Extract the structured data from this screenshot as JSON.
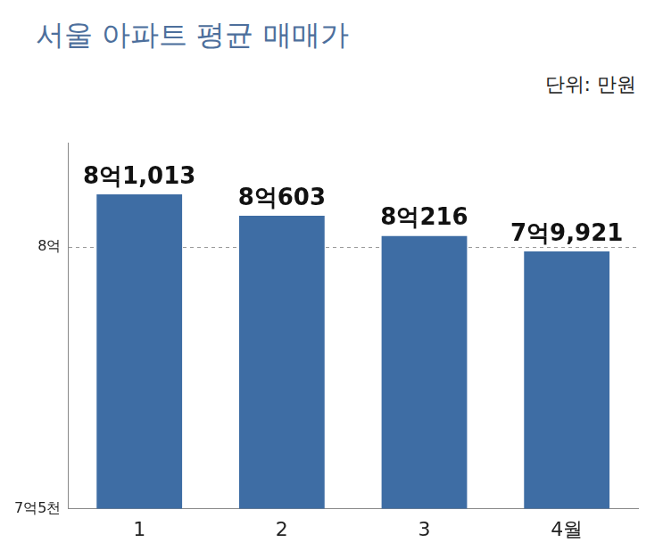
{
  "chart_data": {
    "type": "bar",
    "title": "서울 아파트 평균 매매가",
    "subtitle": "단위: 만원",
    "categories": [
      "1",
      "2",
      "3",
      "4월"
    ],
    "values": [
      81013,
      80603,
      80216,
      79921
    ],
    "value_labels": [
      "8억1,013",
      "8억603",
      "8억216",
      "7억9,921"
    ],
    "color": "#3e6da4",
    "ylim": [
      75000,
      82000
    ],
    "yticks": [
      {
        "value": 75000,
        "label": "7억5천"
      },
      {
        "value": 80000,
        "label": "8억"
      }
    ],
    "grid": true,
    "data_labels": true
  }
}
